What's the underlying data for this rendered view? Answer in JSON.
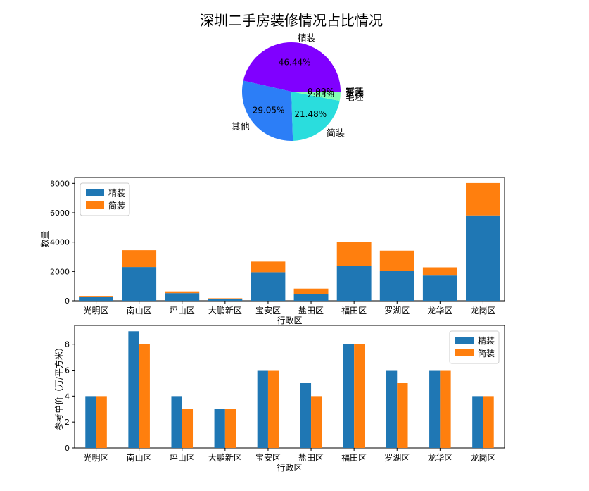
{
  "chart_data": [
    {
      "type": "pie",
      "title": "深圳二手房装修情况占比情况",
      "labels": [
        "精装",
        "其他",
        "简装",
        "毛坯",
        "豪装",
        "暂无"
      ],
      "values": [
        46.44,
        29.05,
        21.48,
        2.83,
        0.09,
        0.09
      ],
      "value_labels": [
        "46.44%",
        "29.05%",
        "21.48%",
        "2.83%",
        "0.09%",
        "0.09%"
      ],
      "colors": [
        "#8000ff",
        "#2c7ef7",
        "#2adddd",
        "#82ffb4",
        "#ffb360",
        "#ff0000"
      ]
    },
    {
      "type": "bar",
      "stacked": true,
      "xlabel": "行政区",
      "ylabel": "数量",
      "categories": [
        "光明区",
        "南山区",
        "坪山区",
        "大鹏新区",
        "宝安区",
        "盐田区",
        "福田区",
        "罗湖区",
        "龙华区",
        "龙岗区"
      ],
      "series": [
        {
          "name": "精装",
          "color": "#1f77b4",
          "values": [
            250,
            2300,
            520,
            120,
            1950,
            450,
            2380,
            2040,
            1720,
            5820
          ]
        },
        {
          "name": "简装",
          "color": "#ff7f0e",
          "values": [
            80,
            1150,
            120,
            50,
            720,
            380,
            1650,
            1380,
            560,
            2200
          ]
        }
      ],
      "ylim": [
        0,
        8400
      ],
      "yticks": [
        0,
        2000,
        4000,
        6000,
        8000
      ],
      "legend": "upper-left"
    },
    {
      "type": "bar",
      "grouped": true,
      "xlabel": "行政区",
      "ylabel": "参考单价（万/平方米）",
      "categories": [
        "光明区",
        "南山区",
        "坪山区",
        "大鹏新区",
        "宝安区",
        "盐田区",
        "福田区",
        "罗湖区",
        "龙华区",
        "龙岗区"
      ],
      "series": [
        {
          "name": "精装",
          "color": "#1f77b4",
          "values": [
            4,
            9,
            4,
            3,
            6,
            5,
            8,
            6,
            6,
            4
          ]
        },
        {
          "name": "简装",
          "color": "#ff7f0e",
          "values": [
            4,
            8,
            3,
            3,
            6,
            4,
            8,
            5,
            6,
            4
          ]
        }
      ],
      "ylim": [
        0,
        9.45
      ],
      "yticks": [
        0,
        2,
        4,
        6,
        8
      ],
      "legend": "upper-right"
    }
  ]
}
